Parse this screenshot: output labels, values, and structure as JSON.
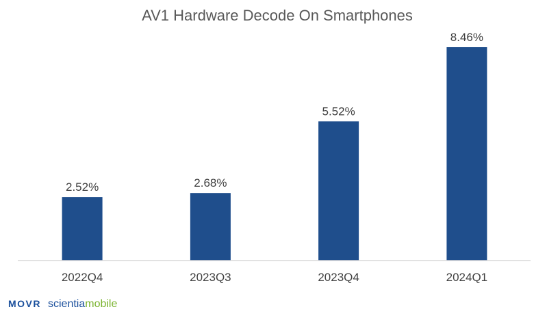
{
  "chart_data": {
    "type": "bar",
    "title": "AV1 Hardware Decode On Smartphones",
    "categories": [
      "2022Q4",
      "2023Q3",
      "2023Q4",
      "2024Q1"
    ],
    "values": [
      2.52,
      2.68,
      5.52,
      8.46
    ],
    "data_labels": [
      "2.52%",
      "2.68%",
      "5.52%",
      "8.46%"
    ],
    "unit": "%",
    "ylim": [
      0,
      8.46
    ],
    "grid": false,
    "legend": "none",
    "bar_color": "#1f4e8c",
    "axis_color": "#d9d9d9"
  },
  "branding": {
    "logo_a": "MOVR",
    "logo_b_part1": "scientia",
    "logo_b_part2": "mobile"
  }
}
